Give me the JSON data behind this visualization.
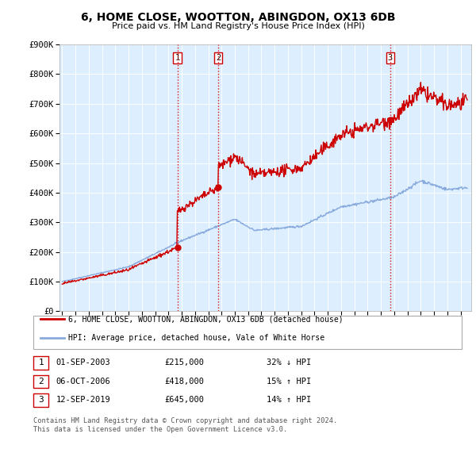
{
  "title": "6, HOME CLOSE, WOOTTON, ABINGDON, OX13 6DB",
  "subtitle": "Price paid vs. HM Land Registry's House Price Index (HPI)",
  "ylabel_ticks": [
    "£0",
    "£100K",
    "£200K",
    "£300K",
    "£400K",
    "£500K",
    "£600K",
    "£700K",
    "£800K",
    "£900K"
  ],
  "y_values": [
    0,
    100000,
    200000,
    300000,
    400000,
    500000,
    600000,
    700000,
    800000,
    900000
  ],
  "ylim": [
    0,
    900000
  ],
  "xlim_start": 1994.8,
  "xlim_end": 2025.8,
  "sale_dates": [
    2003.67,
    2006.75,
    2019.7
  ],
  "sale_prices": [
    215000,
    418000,
    645000
  ],
  "sale_labels": [
    "1",
    "2",
    "3"
  ],
  "vline_color": "#dd1111",
  "dot_color": "#cc0000",
  "property_line_color": "#cc0000",
  "hpi_line_color": "#88aadd",
  "legend_property": "6, HOME CLOSE, WOOTTON, ABINGDON, OX13 6DB (detached house)",
  "legend_hpi": "HPI: Average price, detached house, Vale of White Horse",
  "table_rows": [
    [
      "1",
      "01-SEP-2003",
      "£215,000",
      "32% ↓ HPI"
    ],
    [
      "2",
      "06-OCT-2006",
      "£418,000",
      "15% ↑ HPI"
    ],
    [
      "3",
      "12-SEP-2019",
      "£645,000",
      "14% ↑ HPI"
    ]
  ],
  "footer": "Contains HM Land Registry data © Crown copyright and database right 2024.\nThis data is licensed under the Open Government Licence v3.0.",
  "background_color": "#ffffff",
  "plot_background": "#ddeeff",
  "grid_color": "#ffffff"
}
